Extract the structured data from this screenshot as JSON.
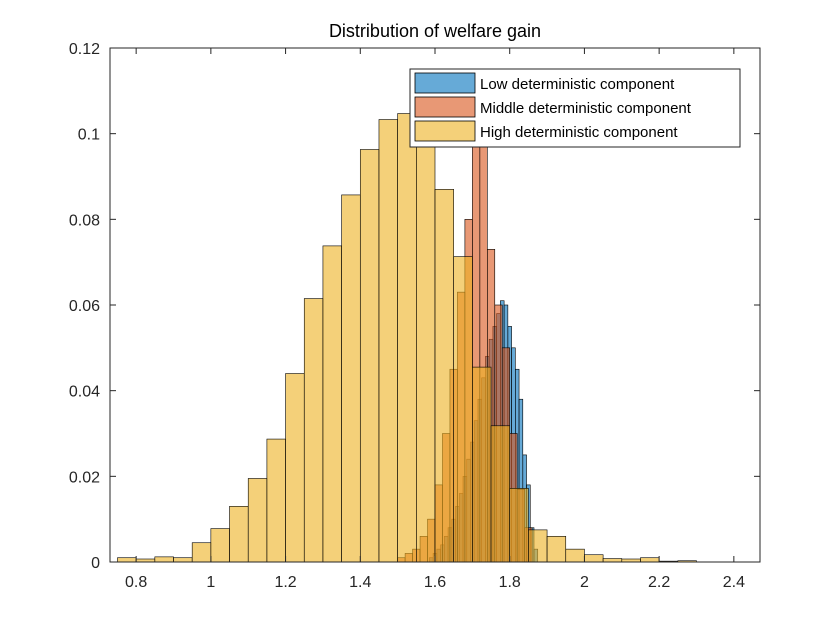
{
  "chart_data": {
    "type": "bar",
    "title": "Distribution of welfare gain",
    "xlabel": "",
    "ylabel": "",
    "xlim": [
      0.73,
      2.47
    ],
    "ylim": [
      0,
      0.12
    ],
    "xticks": [
      0.8,
      1,
      1.2,
      1.4,
      1.6,
      1.8,
      2,
      2.2,
      2.4
    ],
    "xtick_labels": [
      "0.8",
      "1",
      "1.2",
      "1.4",
      "1.6",
      "1.8",
      "2",
      "2.2",
      "2.4"
    ],
    "yticks": [
      0,
      0.02,
      0.04,
      0.06,
      0.08,
      0.1,
      0.12
    ],
    "ytick_labels": [
      "0",
      "0.02",
      "0.04",
      "0.06",
      "0.08",
      "0.1",
      "0.12"
    ],
    "legend_placement": "top-right",
    "grid": false,
    "series": [
      {
        "name": "Low deterministic component",
        "color": "#0072BD",
        "bin_width": 0.01,
        "x": [
          1.59,
          1.6,
          1.61,
          1.62,
          1.63,
          1.64,
          1.65,
          1.66,
          1.67,
          1.68,
          1.69,
          1.7,
          1.71,
          1.72,
          1.73,
          1.74,
          1.75,
          1.76,
          1.77,
          1.78,
          1.79,
          1.8,
          1.81,
          1.82,
          1.83,
          1.84,
          1.85,
          1.86,
          1.87
        ],
        "values": [
          0.001,
          0.002,
          0.003,
          0.004,
          0.006,
          0.008,
          0.01,
          0.013,
          0.016,
          0.02,
          0.024,
          0.028,
          0.033,
          0.038,
          0.043,
          0.048,
          0.052,
          0.055,
          0.058,
          0.061,
          0.06,
          0.055,
          0.05,
          0.045,
          0.038,
          0.025,
          0.018,
          0.008,
          0.003
        ]
      },
      {
        "name": "Middle deterministic component",
        "color": "#D95319",
        "bin_width": 0.02,
        "x": [
          1.51,
          1.53,
          1.55,
          1.57,
          1.59,
          1.61,
          1.63,
          1.65,
          1.67,
          1.69,
          1.71,
          1.73,
          1.75,
          1.77,
          1.79,
          1.81,
          1.83,
          1.85
        ],
        "values": [
          0.001,
          0.002,
          0.003,
          0.006,
          0.01,
          0.018,
          0.03,
          0.045,
          0.063,
          0.08,
          0.098,
          0.1,
          0.073,
          0.06,
          0.05,
          0.03,
          0.017,
          0.008
        ]
      },
      {
        "name": "High deterministic component",
        "color": "#EDB120",
        "bin_width": 0.05,
        "x": [
          0.775,
          0.825,
          0.875,
          0.925,
          0.975,
          1.025,
          1.075,
          1.125,
          1.175,
          1.225,
          1.275,
          1.325,
          1.375,
          1.425,
          1.475,
          1.525,
          1.575,
          1.625,
          1.675,
          1.725,
          1.775,
          1.825,
          1.875,
          1.925,
          1.975,
          2.025,
          2.075,
          2.125,
          2.175,
          2.225,
          2.275
        ],
        "values": [
          0.001,
          0.0007,
          0.0012,
          0.001,
          0.0045,
          0.0078,
          0.013,
          0.0195,
          0.0287,
          0.044,
          0.0615,
          0.0738,
          0.0857,
          0.0963,
          0.1033,
          0.1047,
          0.1,
          0.087,
          0.0713,
          0.0455,
          0.0318,
          0.0172,
          0.0075,
          0.006,
          0.003,
          0.0017,
          0.0008,
          0.0007,
          0.001,
          0.0002,
          0.0003
        ]
      }
    ]
  }
}
